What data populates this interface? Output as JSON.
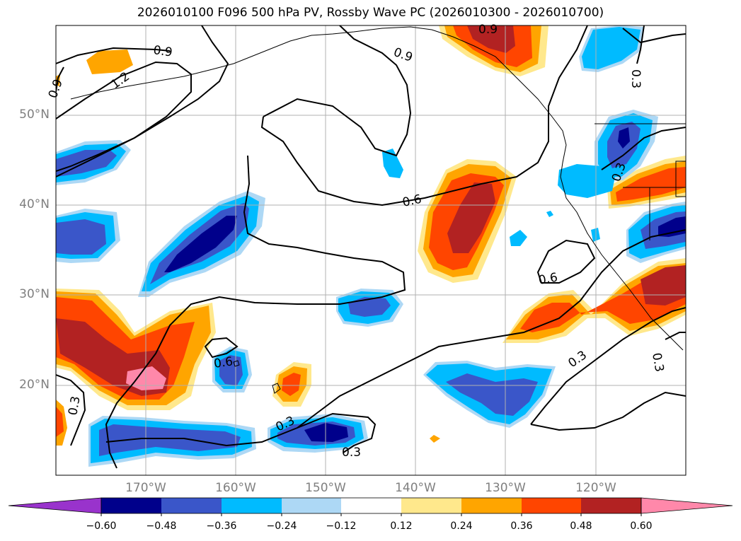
{
  "title": "2026010100 F096 500 hPa PV, Rossby Wave PC (2026010300 - 2026010700)",
  "map": {
    "latitude_labels": [
      "50°N",
      "40°N",
      "30°N",
      "20°N"
    ],
    "longitude_labels": [
      "170°W",
      "160°W",
      "150°W",
      "140°W",
      "130°W",
      "120°W"
    ],
    "contour_labels": [
      "0.9",
      "1.2",
      "0.9",
      "0.9",
      "0.9",
      "0.3",
      "0.6",
      "0.6",
      "0.6",
      "0.3",
      "0.3",
      "0.3",
      "0.3",
      "0.3",
      "0.3"
    ],
    "colorbar": {
      "ticks": [
        "−0.60",
        "−0.48",
        "−0.36",
        "−0.24",
        "−0.12",
        "0.12",
        "0.24",
        "0.36",
        "0.48",
        "0.60"
      ],
      "colors": [
        "#9933cc",
        "#00008b",
        "#3a56c9",
        "#00bbff",
        "#add8f5",
        "#ffffff",
        "#ffe88c",
        "#ffa500",
        "#ff4500",
        "#b22222",
        "#ff88aa"
      ]
    },
    "palette": {
      "neg_dark": "#00008b",
      "neg_mid": "#3a56c9",
      "neg_light": "#00bbff",
      "neg_pale": "#add8f5",
      "pos_pale": "#ffe88c",
      "pos_light": "#ffa500",
      "pos_mid": "#ff4500",
      "pos_dark": "#b22222",
      "pos_max": "#ff88aa"
    }
  }
}
